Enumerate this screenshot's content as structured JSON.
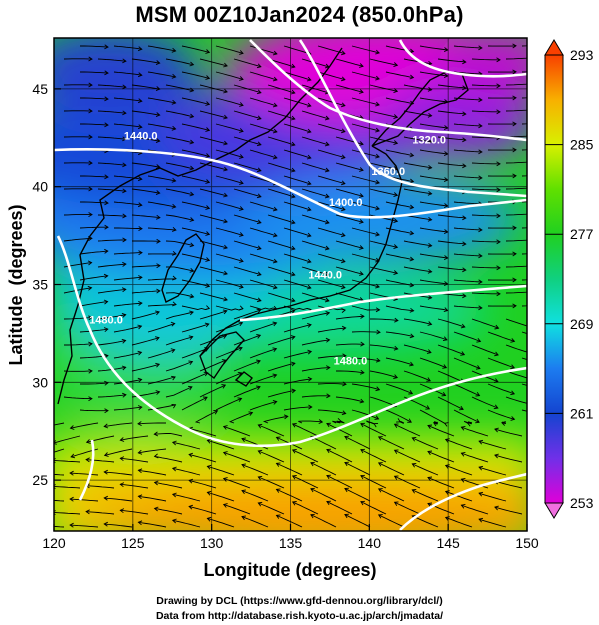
{
  "title": "MSM 00Z10Jan2024 (850.0hPa)",
  "map": {
    "x_axis": {
      "label": "Longitude (degrees)",
      "range": [
        120,
        150
      ],
      "ticks": [
        "120",
        "125",
        "130",
        "135",
        "140",
        "145",
        "150"
      ]
    },
    "y_axis": {
      "label": "Latitude  (degrees)",
      "range": [
        22.4,
        47.6
      ],
      "ticks": [
        "25",
        "30",
        "35",
        "40",
        "45"
      ]
    },
    "contours": {
      "field": "geopotential height",
      "labels": [
        {
          "text": "1320.0",
          "lon": 143.8,
          "lat": 42.2
        },
        {
          "text": "1360.0",
          "lon": 141.2,
          "lat": 40.6
        },
        {
          "text": "1400.0",
          "lon": 138.5,
          "lat": 39.0
        },
        {
          "text": "1440.0",
          "lon": 125.5,
          "lat": 42.4
        },
        {
          "text": "1440.0",
          "lon": 137.2,
          "lat": 35.3
        },
        {
          "text": "1480.0",
          "lon": 123.3,
          "lat": 33.0
        },
        {
          "text": "1480.0",
          "lon": 138.8,
          "lat": 30.9
        }
      ]
    }
  },
  "colorbar": {
    "field": "temperature (K)",
    "range": [
      253,
      293
    ],
    "tick_labels": [
      "293",
      "285",
      "277",
      "269",
      "261",
      "253"
    ],
    "colors": {
      "253": "#e000d8",
      "257": "#7030e8",
      "261": "#1444d0",
      "265": "#1c7cf0",
      "269": "#10e0e0",
      "273": "#10d080",
      "277": "#20d020",
      "281": "#60e000",
      "285": "#d8f000",
      "289": "#f8b000",
      "293": "#f84000"
    }
  },
  "credits": {
    "line1": "Drawing by DCL (https://www.gfd-dennou.org/library/dcl/)",
    "line2": "Data from http://database.rish.kyoto-u.ac.jp/arch/jmadata/"
  }
}
